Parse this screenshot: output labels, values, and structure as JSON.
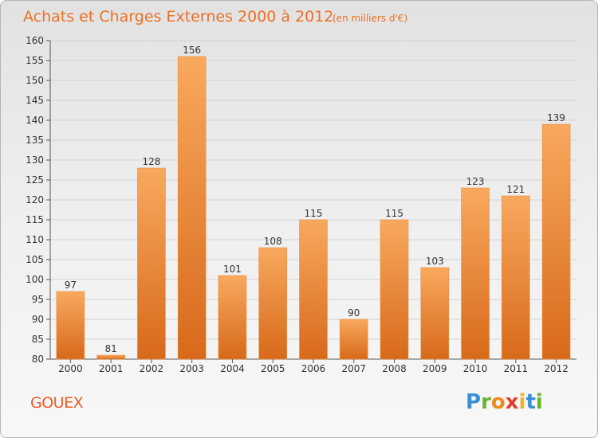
{
  "chart_data": {
    "type": "bar",
    "title": "Achats et Charges Externes 2000 à 2012",
    "subtitle": "(en milliers d'€)",
    "categories": [
      "2000",
      "2001",
      "2002",
      "2003",
      "2004",
      "2005",
      "2006",
      "2007",
      "2008",
      "2009",
      "2010",
      "2011",
      "2012"
    ],
    "values": [
      97,
      81,
      128,
      156,
      101,
      108,
      115,
      90,
      115,
      103,
      123,
      121,
      139
    ],
    "ylim": [
      80,
      160
    ],
    "yticks": [
      80,
      85,
      90,
      95,
      100,
      105,
      110,
      115,
      120,
      125,
      130,
      135,
      140,
      145,
      150,
      155,
      160
    ],
    "grid": true,
    "colors": {
      "bar_light": "#f7a75c",
      "bar_dark": "#d96a18",
      "title": "#ee6f25"
    }
  },
  "footer": {
    "commune": "GOUEX",
    "logo_letters": [
      {
        "ch": "P",
        "color": "#3b8fd6"
      },
      {
        "ch": "r",
        "color": "#6bb230"
      },
      {
        "ch": "o",
        "color": "#f08a1c"
      },
      {
        "ch": "x",
        "color": "#e33b2e"
      },
      {
        "ch": "i",
        "color": "#f2b41c"
      },
      {
        "ch": "t",
        "color": "#3b8fd6"
      },
      {
        "ch": "i",
        "color": "#6bb230"
      }
    ]
  }
}
